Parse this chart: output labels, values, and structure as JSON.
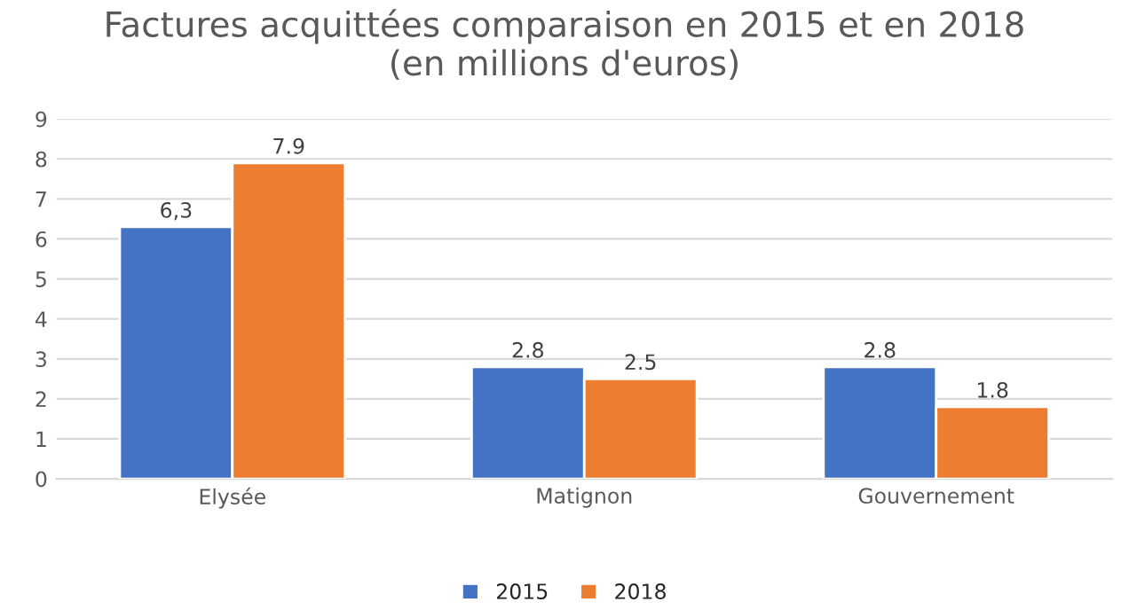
{
  "chart_data": {
    "type": "bar",
    "title": "Factures acquittées comparaison en 2015 et en 2018\n(en millions d'euros)",
    "categories": [
      "Elysée",
      "Matignon",
      "Gouvernement"
    ],
    "series": [
      {
        "name": "2015",
        "color": "#4472c4",
        "values": [
          6.3,
          2.8,
          2.8
        ],
        "value_labels": [
          "6,3",
          "2.8",
          "2.8"
        ]
      },
      {
        "name": "2018",
        "color": "#ed7d31",
        "values": [
          7.9,
          2.5,
          1.8
        ],
        "value_labels": [
          "7.9",
          "2.5",
          "1.8"
        ]
      }
    ],
    "ylim": [
      0,
      9
    ],
    "yticks": [
      0,
      1,
      2,
      3,
      4,
      5,
      6,
      7,
      8,
      9
    ],
    "grid": "y",
    "legend": "bottom"
  }
}
